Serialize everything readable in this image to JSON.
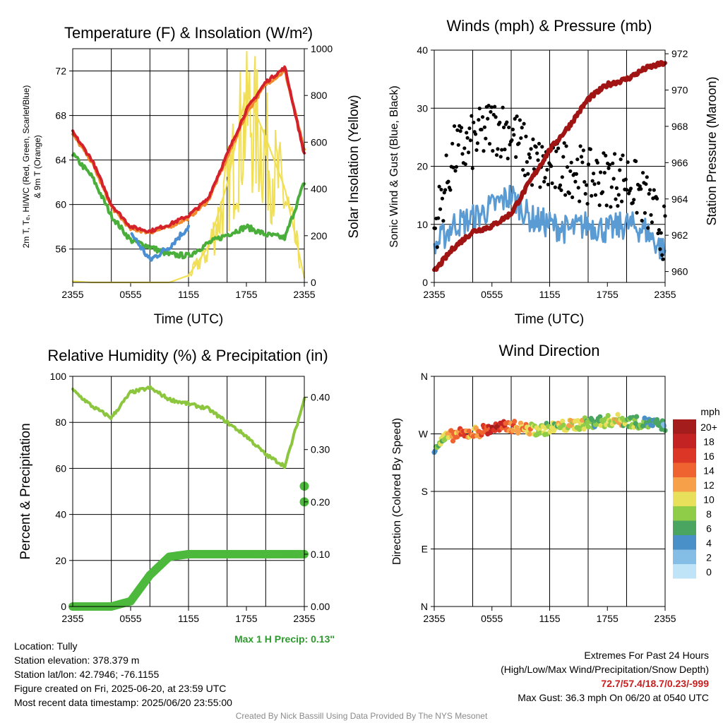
{
  "panels": {
    "temp": {
      "title": "Temperature (F) & Insolation (W/m²)",
      "xlabel": "Time (UTC)",
      "ylabel_left": "2m T, Tₑ, HI/WC (Red, Green, Scarlet/Blue)",
      "ylabel_left2": "& 9m T (Orange)",
      "ylabel_right": "Solar Insolation (Yellow)",
      "xticks": [
        "2355",
        "0555",
        "1155",
        "1755",
        "2355"
      ],
      "yticks_left": [
        "56",
        "60",
        "64",
        "68",
        "72"
      ],
      "yticks_right": [
        "0",
        "200",
        "400",
        "600",
        "800",
        "1000"
      ]
    },
    "wind": {
      "title": "Winds (mph) & Pressure (mb)",
      "xlabel": "Time (UTC)",
      "ylabel_left": "Sonic Wind & Gust (Blue, Black)",
      "ylabel_right": "Station Pressure (Maroon)",
      "xticks": [
        "2355",
        "0555",
        "1155",
        "1755",
        "2355"
      ],
      "yticks_left": [
        "0",
        "10",
        "20",
        "30",
        "40"
      ],
      "yticks_right": [
        "960",
        "962",
        "964",
        "966",
        "968",
        "970",
        "972"
      ]
    },
    "rh": {
      "title": "Relative Humidity (%) & Precipitation (in)",
      "ylabel_left": "Percent & Precipitation",
      "xticks": [
        "2355",
        "0555",
        "1155",
        "1755",
        "2355"
      ],
      "yticks_left": [
        "0",
        "20",
        "40",
        "60",
        "80",
        "100"
      ],
      "yticks_right": [
        "0.00",
        "0.10",
        "0.20",
        "0.30",
        "0.40"
      ],
      "max_precip": "Max 1 H Precip: 0.13\""
    },
    "dir": {
      "title": "Wind Direction",
      "ylabel_left": "Direction (Colored By Speed)",
      "xticks": [
        "2355",
        "0555",
        "1155",
        "1755",
        "2355"
      ],
      "yticks_left": [
        "N",
        "E",
        "S",
        "W",
        "N"
      ],
      "legend_title": "mph",
      "legend_labels": [
        "20+",
        "18",
        "16",
        "14",
        "12",
        "10",
        "8",
        "6",
        "4",
        "2",
        "0"
      ],
      "legend_colors": [
        "#a51c1c",
        "#c32323",
        "#dc3626",
        "#ee6330",
        "#f6a04a",
        "#e8e05a",
        "#8fcc48",
        "#4aa560",
        "#4a90c8",
        "#84bde6",
        "#bfe3f7"
      ]
    }
  },
  "info": {
    "location": "Location: Tully",
    "elevation": "Station elevation: 378.379 m",
    "latlon": "Station lat/lon: 42.7946; -76.1155",
    "created": "Figure created on Fri, 2025-06-20, at 23:59 UTC",
    "recent": "Most recent data timestamp: 2025/06/20 23:55:00",
    "extremes_title": "Extremes For Past 24 Hours",
    "extremes_sub": "(High/Low/Max Wind/Precipitation/Snow Depth)",
    "extremes_values": "72.7/57.4/18.7/0.23/-999",
    "max_gust": "Max Gust: 36.3 mph On 06/20 at 0540 UTC"
  },
  "credit": "Created By Nick Bassill Using Data Provided By The NYS Mesonet",
  "chart_data": [
    {
      "type": "line",
      "title": "Temperature (F) & Insolation (W/m2)",
      "xlabel": "Time (UTC)",
      "ylabel": "2m T, Td, HI/WC (Red, Green, Scarlet/Blue) & 9m T (Orange)",
      "y2label": "Solar Insolation (Yellow)",
      "x": [
        0,
        2,
        4,
        6,
        8,
        10,
        12,
        14,
        16,
        18,
        20,
        22,
        24
      ],
      "ylim": [
        53,
        74
      ],
      "y2lim": [
        0,
        1000
      ],
      "series": [
        {
          "name": "2m T",
          "color": "#d4212a",
          "values": [
            66.5,
            64.0,
            60.0,
            58.0,
            57.6,
            58.2,
            59.0,
            60.5,
            64.5,
            68.5,
            71.0,
            72.3,
            64.5
          ]
        },
        {
          "name": "9m T",
          "color": "#f08a2d",
          "values": [
            66.3,
            63.8,
            59.8,
            57.8,
            57.5,
            58.0,
            58.8,
            60.3,
            64.2,
            68.2,
            70.8,
            72.0,
            64.8
          ]
        },
        {
          "name": "Td",
          "color": "#4aae3a",
          "values": [
            64.5,
            62.5,
            59.0,
            56.8,
            56.2,
            55.5,
            55.4,
            56.5,
            57.3,
            58.0,
            57.3,
            57.0,
            62.0
          ]
        },
        {
          "name": "HI/WC",
          "color": "#4a8fd2",
          "values": [
            null,
            null,
            null,
            57.5,
            55.0,
            56.2,
            58.0,
            null,
            null,
            null,
            null,
            null,
            null
          ]
        },
        {
          "name": "Insolation",
          "axis": "y2",
          "color": "#f1df55",
          "values": [
            5,
            0,
            0,
            0,
            0,
            0,
            30,
            150,
            420,
            820,
            620,
            400,
            20
          ]
        }
      ]
    },
    {
      "type": "line",
      "title": "Winds (mph) & Pressure (mb)",
      "xlabel": "Time (UTC)",
      "ylabel": "Sonic Wind & Gust (Blue, Black)",
      "y2label": "Station Pressure (Maroon)",
      "x": [
        0,
        2,
        4,
        6,
        8,
        10,
        12,
        14,
        16,
        18,
        20,
        22,
        24
      ],
      "ylim": [
        0,
        40
      ],
      "y2lim": [
        959.4,
        972.2
      ],
      "series": [
        {
          "name": "Sonic Wind",
          "color": "#5a9bd4",
          "values": [
            6,
            10,
            11,
            13,
            15,
            11,
            10,
            9,
            10,
            9,
            10,
            9,
            5
          ]
        },
        {
          "name": "Gust",
          "color": "#000000",
          "type": "scatter",
          "values": [
            9,
            22,
            24,
            27,
            26,
            21,
            19,
            20,
            18,
            18,
            18,
            14,
            8
          ]
        },
        {
          "name": "Station Pressure",
          "axis": "y2",
          "color": "#a01414",
          "values": [
            960.0,
            961.3,
            962.2,
            962.5,
            963.2,
            965.0,
            966.7,
            968.0,
            969.5,
            970.3,
            970.6,
            971.2,
            971.5
          ]
        }
      ]
    },
    {
      "type": "line",
      "title": "Relative Humidity (%) & Precipitation (in)",
      "ylabel": "Percent & Precipitation",
      "x": [
        0,
        2,
        4,
        6,
        8,
        10,
        12,
        14,
        16,
        18,
        20,
        22,
        24
      ],
      "ylim": [
        0,
        100
      ],
      "y2lim": [
        0,
        0.44
      ],
      "series": [
        {
          "name": "Relative Humidity",
          "color": "#8cc63f",
          "values": [
            94,
            87,
            82,
            93,
            95,
            90,
            88,
            86,
            80,
            74,
            66,
            61,
            90
          ]
        },
        {
          "name": "Precipitation",
          "axis": "y2",
          "color": "#4cb83c",
          "values": [
            0,
            0,
            0,
            0.01,
            0.06,
            0.095,
            0.1,
            0.1,
            0.1,
            0.1,
            0.1,
            0.1,
            0.1
          ]
        },
        {
          "name": "Max 1 H Precip points",
          "axis": "y2",
          "color": "#4cb83c",
          "type": "scatter",
          "x_points": [
            24,
            24
          ],
          "values": [
            0.2,
            0.23
          ]
        }
      ]
    },
    {
      "type": "scatter",
      "title": "Wind Direction",
      "ylabel": "Direction (Colored By Speed)",
      "x": [
        0,
        1,
        2,
        3,
        4,
        5,
        6,
        7,
        8,
        9,
        10,
        11,
        12,
        13,
        14,
        15,
        16,
        17,
        18,
        19,
        20,
        21,
        22,
        23,
        24
      ],
      "ylim": [
        0,
        360
      ],
      "yticks": [
        "N",
        "E",
        "S",
        "W",
        "N"
      ],
      "series": [
        {
          "name": "Direction",
          "values": [
            250,
            262,
            268,
            270,
            272,
            275,
            278,
            280,
            282,
            279,
            277,
            276,
            279,
            281,
            283,
            285,
            287,
            289,
            290,
            292,
            290,
            288,
            287,
            285,
            282
          ]
        },
        {
          "name": "Speed",
          "values": [
            5,
            9,
            13,
            14,
            12,
            14,
            18,
            17,
            14,
            12,
            11,
            9,
            8,
            9,
            10,
            10,
            8,
            7,
            9,
            10,
            8,
            7,
            6,
            5,
            4
          ]
        }
      ],
      "colorbar": {
        "label": "mph",
        "ticks": [
          "0",
          "2",
          "4",
          "6",
          "8",
          "10",
          "12",
          "14",
          "16",
          "18",
          "20+"
        ]
      }
    }
  ]
}
